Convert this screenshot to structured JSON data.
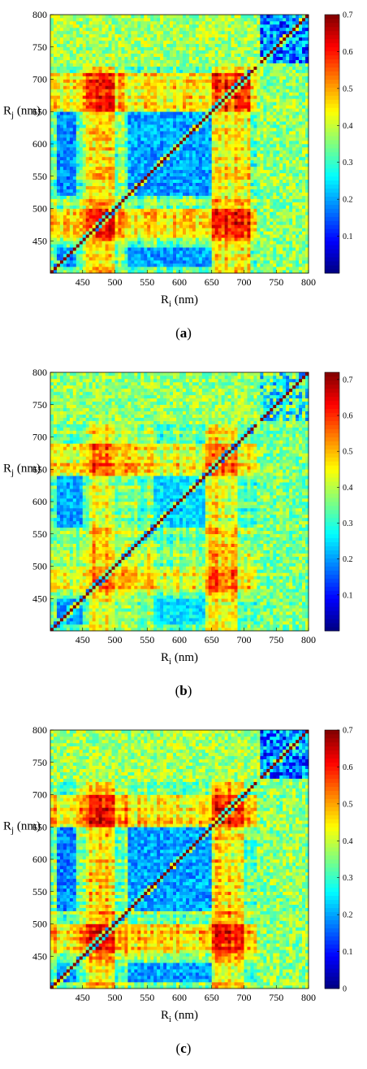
{
  "chart_data": [
    {
      "type": "heatmap",
      "panel_label": "a",
      "xlabel": "Ri (nm)",
      "xlabel_main": "R",
      "xlabel_sub": "i",
      "xlabel_unit": " (nm)",
      "ylabel": "Rj (nm)",
      "ylabel_main": "R",
      "ylabel_sub": "j",
      "ylabel_unit": " (nm)",
      "x_ticks": [
        450,
        500,
        550,
        600,
        650,
        700,
        750,
        800
      ],
      "y_ticks": [
        450,
        500,
        550,
        600,
        650,
        700,
        750,
        800
      ],
      "x_range": [
        400,
        800
      ],
      "y_range": [
        400,
        800
      ],
      "colorbar_ticks": [
        0.1,
        0.2,
        0.3,
        0.4,
        0.5,
        0.6,
        0.7
      ],
      "colorbar_range": [
        0,
        0.7
      ],
      "colormap": "jet",
      "seed": 11,
      "hot_bands": [
        [
          455,
          500,
          0.62
        ],
        [
          650,
          700,
          0.6
        ],
        [
          690,
          712,
          0.55
        ]
      ],
      "cold_bands": [
        [
          410,
          440,
          0.12
        ],
        [
          520,
          650,
          0.14
        ]
      ],
      "upper_right_low": true
    },
    {
      "type": "heatmap",
      "panel_label": "b",
      "xlabel": "Ri (nm)",
      "xlabel_main": "R",
      "xlabel_sub": "i",
      "xlabel_unit": " (nm)",
      "ylabel": "Rj (nm)",
      "ylabel_main": "R",
      "ylabel_sub": "j",
      "ylabel_unit": " (nm)",
      "x_ticks": [
        450,
        500,
        550,
        600,
        650,
        700,
        750,
        800
      ],
      "y_ticks": [
        450,
        500,
        550,
        600,
        650,
        700,
        750,
        800
      ],
      "x_range": [
        400,
        800
      ],
      "y_range": [
        400,
        800
      ],
      "colorbar_ticks": [
        0.1,
        0.2,
        0.3,
        0.4,
        0.5,
        0.6,
        0.7
      ],
      "colorbar_range": [
        0,
        0.72
      ],
      "colormap": "jet",
      "seed": 23,
      "hot_bands": [
        [
          460,
          500,
          0.58
        ],
        [
          640,
          690,
          0.58
        ]
      ],
      "cold_bands": [
        [
          410,
          450,
          0.15
        ],
        [
          560,
          640,
          0.2
        ]
      ],
      "upper_right_low": false
    },
    {
      "type": "heatmap",
      "panel_label": "c",
      "xlabel": "Ri (nm)",
      "xlabel_main": "R",
      "xlabel_sub": "i",
      "xlabel_unit": " (nm)",
      "ylabel": "Rj (nm)",
      "ylabel_main": "R",
      "ylabel_sub": "j",
      "ylabel_unit": " (nm)",
      "x_ticks": [
        450,
        500,
        550,
        600,
        650,
        700,
        750,
        800
      ],
      "y_ticks": [
        450,
        500,
        550,
        600,
        650,
        700,
        750,
        800
      ],
      "x_range": [
        400,
        800
      ],
      "y_range": [
        400,
        800
      ],
      "colorbar_ticks": [
        0,
        0.1,
        0.2,
        0.3,
        0.4,
        0.5,
        0.6,
        0.7
      ],
      "colorbar_range": [
        0,
        0.7
      ],
      "colormap": "jet",
      "seed": 37,
      "hot_bands": [
        [
          455,
          500,
          0.62
        ],
        [
          650,
          700,
          0.6
        ]
      ],
      "cold_bands": [
        [
          410,
          440,
          0.12
        ],
        [
          520,
          650,
          0.14
        ]
      ],
      "upper_right_low": true
    }
  ]
}
